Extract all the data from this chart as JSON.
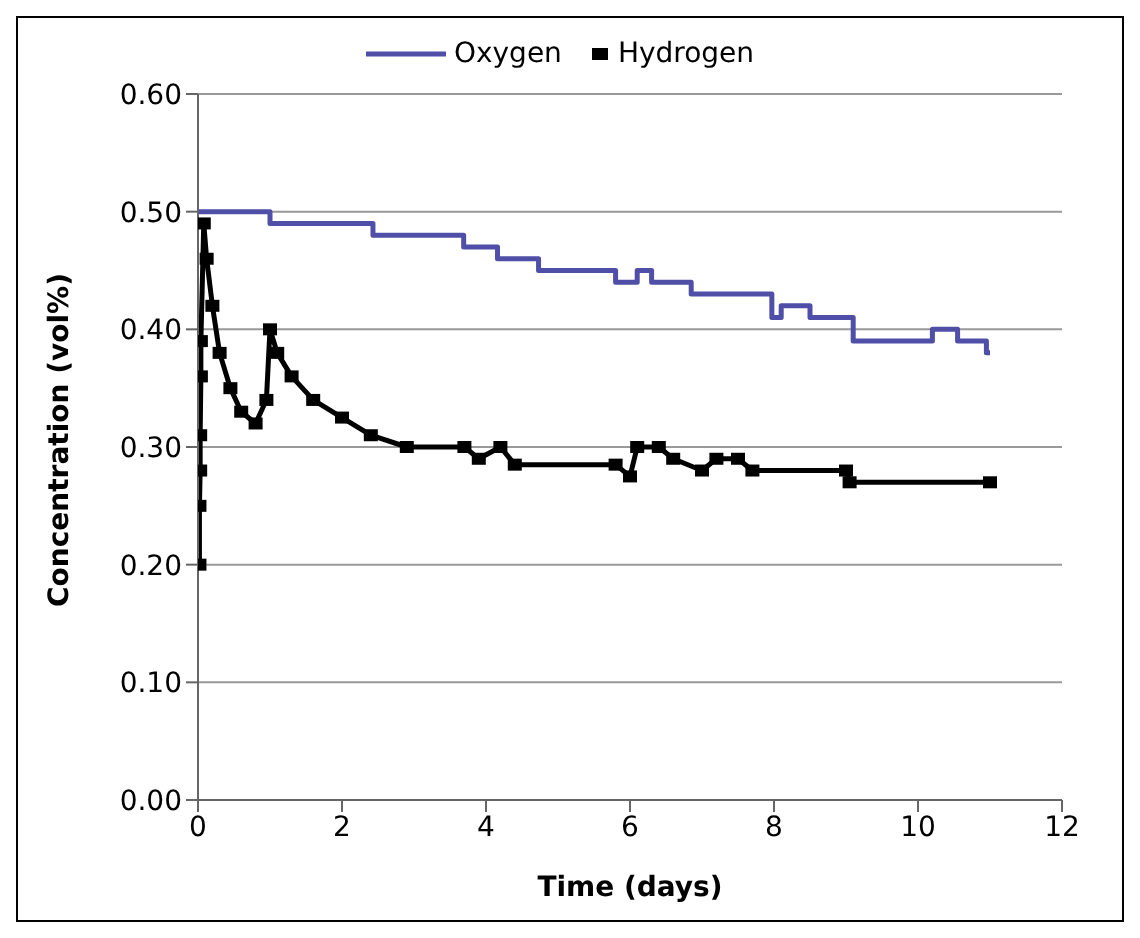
{
  "chart_data": {
    "type": "line",
    "xlabel": "Time (days)",
    "ylabel": "Concentration (vol%)",
    "xlim": [
      0,
      12
    ],
    "xticks": [
      0,
      2,
      4,
      6,
      8,
      10,
      12
    ],
    "ylim": [
      0,
      0.6
    ],
    "yticks": [
      {
        "value": 0,
        "label": "0.00"
      },
      {
        "value": 0.1,
        "label": "0.10"
      },
      {
        "value": 0.2,
        "label": "0.20"
      },
      {
        "value": 0.3,
        "label": "0.30"
      },
      {
        "value": 0.4,
        "label": "0.40"
      },
      {
        "value": 0.5,
        "label": "0.50"
      },
      {
        "value": 0.6,
        "label": "0.60"
      }
    ],
    "grid": "y",
    "legend": "top",
    "series": [
      {
        "name": "Oxygen",
        "type": "step",
        "color": "#4f4fa8",
        "marker": "none",
        "x": [
          0,
          1.0,
          2.43,
          3.69,
          4.16,
          4.73,
          5.8,
          6.1,
          6.3,
          6.85,
          7.97,
          8.1,
          8.5,
          9.1,
          10.2,
          10.55,
          10.95,
          11.0
        ],
        "values": [
          0.5,
          0.49,
          0.48,
          0.47,
          0.46,
          0.45,
          0.44,
          0.45,
          0.44,
          0.43,
          0.41,
          0.42,
          0.41,
          0.39,
          0.4,
          0.39,
          0.38,
          0.38
        ]
      },
      {
        "name": "Hydrogen",
        "type": "line",
        "color": "#000000",
        "marker": "square",
        "x": [
          0.02,
          0.02,
          0.03,
          0.03,
          0.04,
          0.04,
          0.08,
          0.12,
          0.2,
          0.3,
          0.45,
          0.6,
          0.8,
          0.95,
          1.0,
          1.1,
          1.3,
          1.6,
          2.0,
          2.4,
          2.9,
          3.7,
          3.9,
          4.2,
          4.4,
          5.8,
          6.0,
          6.1,
          6.4,
          6.6,
          7.0,
          7.2,
          7.5,
          7.7,
          9.0,
          9.05,
          11.0
        ],
        "values": [
          0.2,
          0.25,
          0.28,
          0.31,
          0.36,
          0.39,
          0.49,
          0.46,
          0.42,
          0.38,
          0.35,
          0.33,
          0.32,
          0.34,
          0.4,
          0.38,
          0.36,
          0.34,
          0.325,
          0.31,
          0.3,
          0.3,
          0.29,
          0.3,
          0.285,
          0.285,
          0.275,
          0.3,
          0.3,
          0.29,
          0.28,
          0.29,
          0.29,
          0.28,
          0.28,
          0.27,
          0.27
        ]
      }
    ]
  }
}
